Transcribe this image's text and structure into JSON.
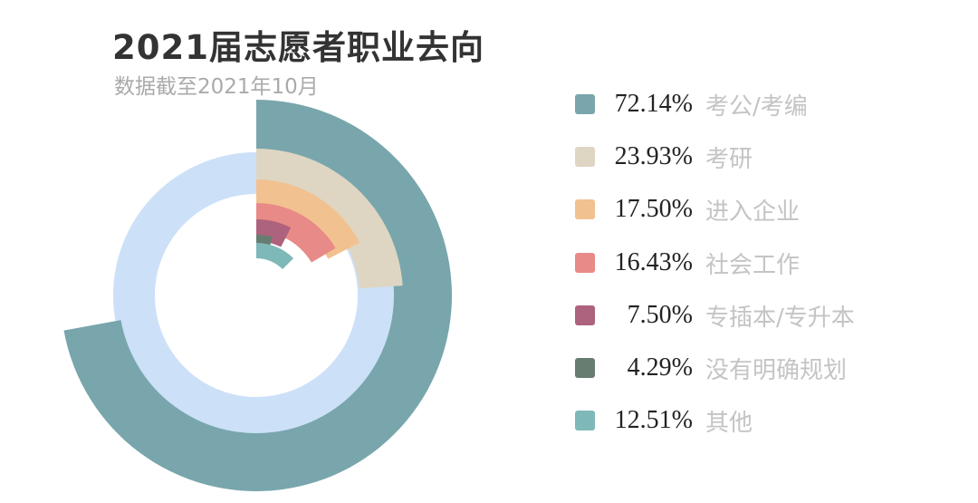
{
  "chart_data": {
    "type": "radial-bar",
    "title": "2021届志愿者职业去向",
    "subtitle": "数据截至2021年10月",
    "background_ring_color": "#CCE0F8",
    "categories": [
      "考公/考编",
      "考研",
      "进入企业",
      "社会工作",
      "专插本/专升本",
      "没有明确规划",
      "其他"
    ],
    "values": [
      72.14,
      23.93,
      17.5,
      16.43,
      7.5,
      4.29,
      12.51
    ],
    "labels": [
      "72.14%",
      "23.93%",
      "17.50%",
      "16.43%",
      "7.50%",
      "4.29%",
      "12.51%"
    ],
    "colors": [
      "#78A6AC",
      "#DED6C2",
      "#F2C190",
      "#E88A87",
      "#AD627D",
      "#687D72",
      "#7FB8B8"
    ],
    "legend": "right"
  }
}
